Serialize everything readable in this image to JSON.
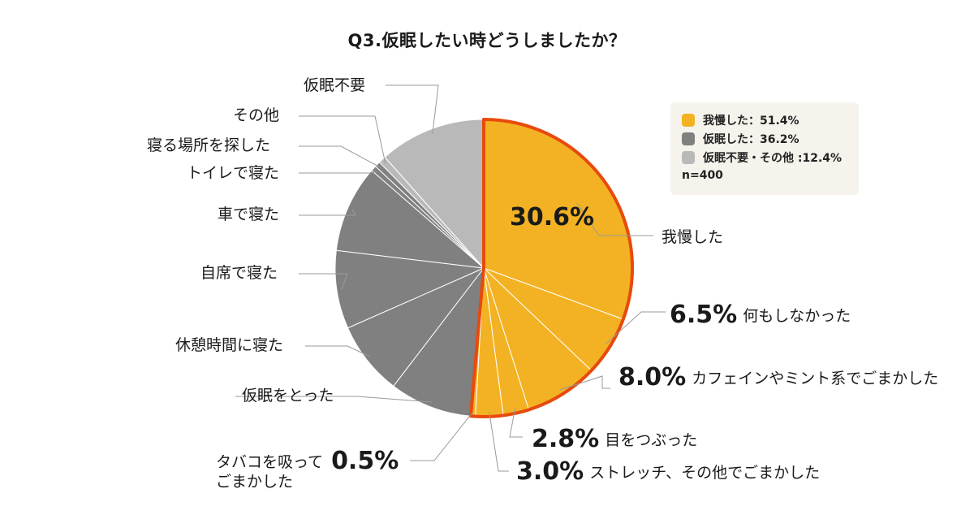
{
  "chart_data": {
    "type": "pie",
    "title": "Q3.仮眠したい時どうしましたか？",
    "categories": [
      "我慢した",
      "何もしなかった",
      "カフェインやミント系でごまかした",
      "目をつぶった",
      "ストレッチ、その他でごまかした",
      "タバコを吸ってごまかした",
      "仮眠をとった",
      "休憩時間に寝た",
      "自席で寝た",
      "車で寝た",
      "トイレで寝た",
      "寝る場所を探した",
      "その他",
      "仮眠不要"
    ],
    "values": [
      30.6,
      6.5,
      8.0,
      2.8,
      3.0,
      0.5,
      9.0,
      8.0,
      8.5,
      9.5,
      0.6,
      0.6,
      0.8,
      11.6
    ],
    "groups": [
      "我慢した",
      "我慢した",
      "我慢した",
      "我慢した",
      "我慢した",
      "我慢した",
      "仮眠した",
      "仮眠した",
      "仮眠した",
      "仮眠した",
      "仮眠した",
      "仮眠した",
      "仮眠不要・その他",
      "仮眠不要・その他"
    ],
    "highlight_group": "我慢した",
    "colors": {
      "我慢した": "#f3b223",
      "仮眠した": "#808080",
      "仮眠不要・その他": "#b9b9b9",
      "outline": "#e84a0c",
      "slice_border": "#ffffff",
      "leader": "#9a9a9a"
    },
    "legend": {
      "items": [
        {
          "label": "我慢した：51.4%",
          "color": "#f3b223"
        },
        {
          "label": "仮眠した：36.2%",
          "color": "#808080"
        },
        {
          "label": "仮眠不要・その他 :12.4%",
          "color": "#b9b9b9"
        }
      ],
      "note": "n=400",
      "position": "top-right"
    },
    "labels": {
      "inner_pct": "30.6%",
      "gaman": "我慢した",
      "pct_6_5": "6.5%",
      "nani": "何もしなかった",
      "pct_8_0": "8.0%",
      "caffeine": "カフェインやミント系でごまかした",
      "pct_2_8": "2.8%",
      "me": "目をつぶった",
      "pct_3_0": "3.0%",
      "stretch": "ストレッチ、その他でごまかした",
      "tabako1": "タバコを吸って",
      "pct_0_5": "0.5%",
      "tabako2": "ごまかした",
      "kamin": "仮眠をとった",
      "kyukei": "休憩時間に寝た",
      "jiseki": "自席で寝た",
      "kuruma": "車で寝た",
      "toilet": "トイレで寝た",
      "basho": "寝る場所を探した",
      "sonota": "その他",
      "fuyou": "仮眠不要"
    }
  }
}
